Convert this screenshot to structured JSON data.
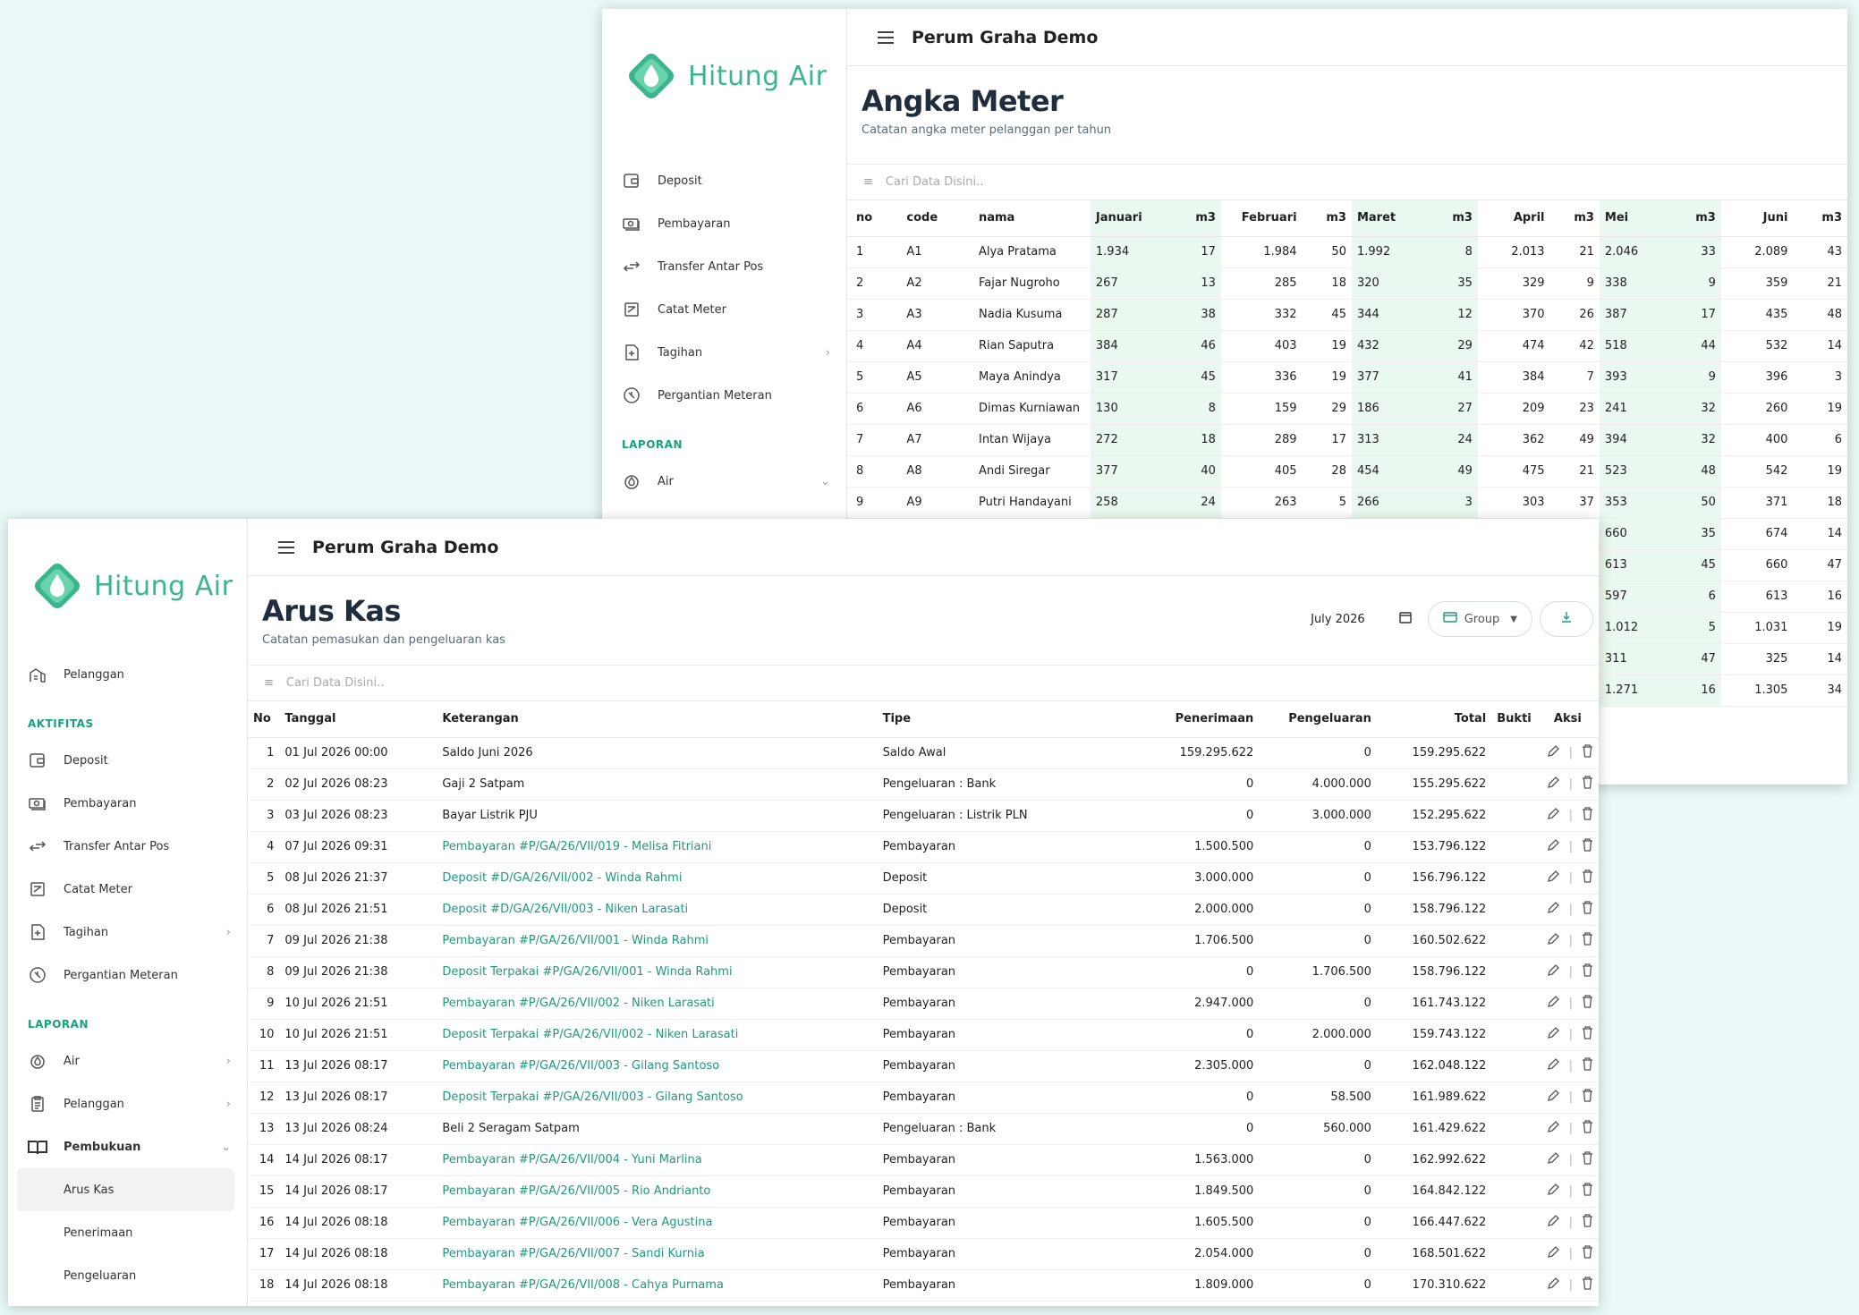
{
  "app": {
    "logo_text": "Hitung Air",
    "org_name": "Perum Graha Demo"
  },
  "colors": {
    "brand": "#3bb58e",
    "link": "#1f9a7a",
    "highlight_col": "#eaf8ef",
    "background": "#eaf9f8"
  },
  "search": {
    "placeholder": "Cari Data Disini.."
  },
  "meter": {
    "title": "Angka Meter",
    "subtitle": "Catatan angka meter pelanggan per tahun",
    "nav": {
      "items": [
        {
          "label": "Deposit",
          "icon": "wallet-icon"
        },
        {
          "label": "Pembayaran",
          "icon": "cash-icon"
        },
        {
          "label": "Transfer Antar Pos",
          "icon": "transfer-icon"
        },
        {
          "label": "Catat Meter",
          "icon": "meter-icon"
        },
        {
          "label": "Tagihan",
          "icon": "bill-icon"
        },
        {
          "label": "Pergantian Meteran",
          "icon": "replace-meter-icon"
        }
      ],
      "section_laporan": "LAPORAN",
      "air": "Air"
    },
    "columns": [
      "no",
      "code",
      "nama",
      "Januari",
      "m3",
      "Februari",
      "m3",
      "Maret",
      "m3",
      "April",
      "m3",
      "Mei",
      "m3",
      "Juni",
      "m3"
    ],
    "rows": [
      [
        "1",
        "A1",
        "Alya Pratama",
        "1.934",
        "17",
        "1.984",
        "50",
        "1.992",
        "8",
        "2.013",
        "21",
        "2.046",
        "33",
        "2.089",
        "43"
      ],
      [
        "2",
        "A2",
        "Fajar Nugroho",
        "267",
        "13",
        "285",
        "18",
        "320",
        "35",
        "329",
        "9",
        "338",
        "9",
        "359",
        "21"
      ],
      [
        "3",
        "A3",
        "Nadia Kusuma",
        "287",
        "38",
        "332",
        "45",
        "344",
        "12",
        "370",
        "26",
        "387",
        "17",
        "435",
        "48"
      ],
      [
        "4",
        "A4",
        "Rian Saputra",
        "384",
        "46",
        "403",
        "19",
        "432",
        "29",
        "474",
        "42",
        "518",
        "44",
        "532",
        "14"
      ],
      [
        "5",
        "A5",
        "Maya Anindya",
        "317",
        "45",
        "336",
        "19",
        "377",
        "41",
        "384",
        "7",
        "393",
        "9",
        "396",
        "3"
      ],
      [
        "6",
        "A6",
        "Dimas Kurniawan",
        "130",
        "8",
        "159",
        "29",
        "186",
        "27",
        "209",
        "23",
        "241",
        "32",
        "260",
        "19"
      ],
      [
        "7",
        "A7",
        "Intan Wijaya",
        "272",
        "18",
        "289",
        "17",
        "313",
        "24",
        "362",
        "49",
        "394",
        "32",
        "400",
        "6"
      ],
      [
        "8",
        "A8",
        "Andi Siregar",
        "377",
        "40",
        "405",
        "28",
        "454",
        "49",
        "475",
        "21",
        "523",
        "48",
        "542",
        "19"
      ],
      [
        "9",
        "A9",
        "Putri Handayani",
        "258",
        "24",
        "263",
        "5",
        "266",
        "3",
        "303",
        "37",
        "353",
        "50",
        "371",
        "18"
      ],
      [
        "",
        "",
        "",
        "",
        "",
        "",
        "",
        "",
        "",
        "",
        "",
        "660",
        "35",
        "674",
        "14"
      ],
      [
        "",
        "",
        "",
        "",
        "",
        "",
        "",
        "",
        "",
        "",
        "",
        "613",
        "45",
        "660",
        "47"
      ],
      [
        "",
        "",
        "",
        "",
        "",
        "",
        "",
        "",
        "",
        "",
        "",
        "597",
        "6",
        "613",
        "16"
      ],
      [
        "",
        "",
        "",
        "",
        "",
        "",
        "",
        "",
        "",
        "",
        "",
        "1.012",
        "5",
        "1.031",
        "19"
      ],
      [
        "",
        "",
        "",
        "",
        "",
        "",
        "",
        "",
        "",
        "",
        "",
        "311",
        "47",
        "325",
        "14"
      ],
      [
        "",
        "",
        "",
        "",
        "",
        "",
        "",
        "",
        "",
        "",
        "",
        "1.271",
        "16",
        "1.305",
        "34"
      ]
    ]
  },
  "kas": {
    "title": "Arus Kas",
    "subtitle": "Catatan pemasukan dan pengeluaran kas",
    "date_value": "July 2026",
    "group_label": "Group",
    "nav": {
      "pelanggan_top": "Pelanggan",
      "section_aktifitas": "AKTIFITAS",
      "items": [
        {
          "label": "Deposit",
          "icon": "wallet-icon"
        },
        {
          "label": "Pembayaran",
          "icon": "cash-icon"
        },
        {
          "label": "Transfer Antar Pos",
          "icon": "transfer-icon"
        },
        {
          "label": "Catat Meter",
          "icon": "meter-icon"
        },
        {
          "label": "Tagihan",
          "icon": "bill-icon"
        },
        {
          "label": "Pergantian Meteran",
          "icon": "replace-meter-icon"
        }
      ],
      "section_laporan": "LAPORAN",
      "laporan": [
        {
          "label": "Air",
          "icon": "water-drop-icon"
        },
        {
          "label": "Pelanggan",
          "icon": "clipboard-icon"
        },
        {
          "label": "Pembukuan",
          "icon": "book-icon"
        }
      ],
      "sub": [
        "Arus Kas",
        "Penerimaan",
        "Pengeluaran"
      ]
    },
    "columns": [
      "No",
      "Tanggal",
      "Keterangan",
      "Tipe",
      "Penerimaan",
      "Pengeluaran",
      "Total",
      "Bukti",
      "Aksi"
    ],
    "rows": [
      [
        "1",
        "01 Jul 2026 00:00",
        "Saldo Juni 2026",
        "Saldo Awal",
        "159.295.622",
        "0",
        "159.295.622",
        false
      ],
      [
        "2",
        "02 Jul 2026 08:23",
        "Gaji 2 Satpam",
        "Pengeluaran : Bank",
        "0",
        "4.000.000",
        "155.295.622",
        false
      ],
      [
        "3",
        "03 Jul 2026 08:23",
        "Bayar Listrik PJU",
        "Pengeluaran : Listrik PLN",
        "0",
        "3.000.000",
        "152.295.622",
        false
      ],
      [
        "4",
        "07 Jul 2026 09:31",
        "Pembayaran #P/GA/26/VII/019 - Melisa Fitriani",
        "Pembayaran",
        "1.500.500",
        "0",
        "153.796.122",
        true
      ],
      [
        "5",
        "08 Jul 2026 21:37",
        "Deposit #D/GA/26/VII/002 - Winda Rahmi",
        "Deposit",
        "3.000.000",
        "0",
        "156.796.122",
        true
      ],
      [
        "6",
        "08 Jul 2026 21:51",
        "Deposit #D/GA/26/VII/003 - Niken Larasati",
        "Deposit",
        "2.000.000",
        "0",
        "158.796.122",
        true
      ],
      [
        "7",
        "09 Jul 2026 21:38",
        "Pembayaran #P/GA/26/VII/001 - Winda Rahmi",
        "Pembayaran",
        "1.706.500",
        "0",
        "160.502.622",
        true
      ],
      [
        "8",
        "09 Jul 2026 21:38",
        "Deposit Terpakai #P/GA/26/VII/001 - Winda Rahmi",
        "Pembayaran",
        "0",
        "1.706.500",
        "158.796.122",
        true
      ],
      [
        "9",
        "10 Jul 2026 21:51",
        "Pembayaran #P/GA/26/VII/002 - Niken Larasati",
        "Pembayaran",
        "2.947.000",
        "0",
        "161.743.122",
        true
      ],
      [
        "10",
        "10 Jul 2026 21:51",
        "Deposit Terpakai #P/GA/26/VII/002 - Niken Larasati",
        "Pembayaran",
        "0",
        "2.000.000",
        "159.743.122",
        true
      ],
      [
        "11",
        "13 Jul 2026 08:17",
        "Pembayaran #P/GA/26/VII/003 - Gilang Santoso",
        "Pembayaran",
        "2.305.000",
        "0",
        "162.048.122",
        true
      ],
      [
        "12",
        "13 Jul 2026 08:17",
        "Deposit Terpakai #P/GA/26/VII/003 - Gilang Santoso",
        "Pembayaran",
        "0",
        "58.500",
        "161.989.622",
        true
      ],
      [
        "13",
        "13 Jul 2026 08:24",
        "Beli 2 Seragam Satpam",
        "Pengeluaran : Bank",
        "0",
        "560.000",
        "161.429.622",
        false
      ],
      [
        "14",
        "14 Jul 2026 08:17",
        "Pembayaran #P/GA/26/VII/004 - Yuni Marlina",
        "Pembayaran",
        "1.563.000",
        "0",
        "162.992.622",
        true
      ],
      [
        "15",
        "14 Jul 2026 08:17",
        "Pembayaran #P/GA/26/VII/005 - Rio Andrianto",
        "Pembayaran",
        "1.849.500",
        "0",
        "164.842.122",
        true
      ],
      [
        "16",
        "14 Jul 2026 08:18",
        "Pembayaran #P/GA/26/VII/006 - Vera Agustina",
        "Pembayaran",
        "1.605.500",
        "0",
        "166.447.622",
        true
      ],
      [
        "17",
        "14 Jul 2026 08:18",
        "Pembayaran #P/GA/26/VII/007 - Sandi Kurnia",
        "Pembayaran",
        "2.054.000",
        "0",
        "168.501.622",
        true
      ],
      [
        "18",
        "14 Jul 2026 08:18",
        "Pembayaran #P/GA/26/VII/008 - Cahya Purnama",
        "Pembayaran",
        "1.809.000",
        "0",
        "170.310.622",
        true
      ]
    ]
  }
}
